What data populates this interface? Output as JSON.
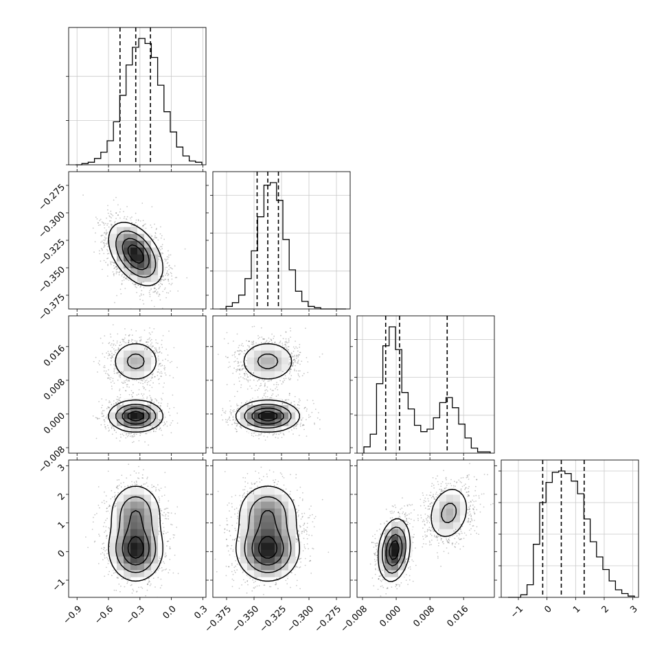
{
  "chart_data": {
    "type": "corner",
    "n_params": 4,
    "grid": true,
    "axes": [
      {
        "range": [
          -0.98,
          0.33
        ],
        "ticks": [
          {
            "v": -0.9,
            "label": "−0.9"
          },
          {
            "v": -0.6,
            "label": "−0.6"
          },
          {
            "v": -0.3,
            "label": "−0.3"
          },
          {
            "v": 0.0,
            "label": "0.0"
          },
          {
            "v": 0.3,
            "label": "0.3"
          }
        ],
        "quantiles": [
          -0.49,
          -0.34,
          -0.2
        ]
      },
      {
        "range": [
          -0.3875,
          -0.2625
        ],
        "ticks": [
          {
            "v": -0.375,
            "label": "−0.375"
          },
          {
            "v": -0.35,
            "label": "−0.350"
          },
          {
            "v": -0.325,
            "label": "−0.325"
          },
          {
            "v": -0.3,
            "label": "−0.300"
          },
          {
            "v": -0.275,
            "label": "−0.275"
          }
        ],
        "quantiles": [
          -0.3472,
          -0.3375,
          -0.3278
        ]
      },
      {
        "range": [
          -0.0093,
          0.0233
        ],
        "ticks": [
          {
            "v": -0.008,
            "label": "−0.008"
          },
          {
            "v": 0.0,
            "label": "0.000"
          },
          {
            "v": 0.008,
            "label": "0.008"
          },
          {
            "v": 0.016,
            "label": "0.016"
          }
        ],
        "quantiles": [
          -0.0025,
          0.0008,
          0.0121
        ]
      },
      {
        "range": [
          -1.6,
          3.2
        ],
        "ticks": [
          {
            "v": -1,
            "label": "−1"
          },
          {
            "v": 0,
            "label": "0"
          },
          {
            "v": 1,
            "label": "1"
          },
          {
            "v": 2,
            "label": "2"
          },
          {
            "v": 3,
            "label": "3"
          }
        ],
        "quantiles": [
          -0.15,
          0.5,
          1.3
        ]
      }
    ],
    "diag_yticks": [
      [
        0.0,
        0.35,
        0.7
      ],
      [
        0.0,
        0.3,
        0.6,
        0.9
      ],
      [
        0.0,
        0.3,
        0.6,
        0.9
      ],
      [
        0.0,
        0.25,
        0.5,
        0.75,
        1.0
      ]
    ],
    "histograms": [
      [
        0.0,
        0.01,
        0.02,
        0.05,
        0.1,
        0.19,
        0.34,
        0.55,
        0.79,
        0.93,
        1.0,
        0.96,
        0.85,
        0.63,
        0.42,
        0.26,
        0.14,
        0.07,
        0.03,
        0.02
      ],
      [
        0.0,
        0.02,
        0.05,
        0.11,
        0.24,
        0.46,
        0.73,
        0.98,
        1.0,
        0.86,
        0.55,
        0.31,
        0.14,
        0.06,
        0.02,
        0.01,
        0.0,
        0.0,
        0.0,
        0.0
      ],
      [
        0.05,
        0.15,
        0.55,
        0.85,
        1.0,
        0.82,
        0.48,
        0.35,
        0.22,
        0.17,
        0.19,
        0.28,
        0.4,
        0.44,
        0.36,
        0.23,
        0.12,
        0.04,
        0.01,
        0.01
      ],
      [
        0.0,
        0.0,
        0.02,
        0.1,
        0.42,
        0.75,
        0.91,
        0.99,
        1.0,
        0.98,
        0.92,
        0.82,
        0.62,
        0.44,
        0.32,
        0.22,
        0.13,
        0.06,
        0.03,
        0.01
      ]
    ],
    "components": [
      {
        "w": 0.62,
        "mean": [
          -0.34,
          -0.3375,
          -0.0005,
          0.05
        ],
        "sd": [
          0.13,
          0.0145,
          0.0019,
          0.55
        ]
      },
      {
        "w": 0.38,
        "mean": [
          -0.34,
          -0.3375,
          0.0125,
          1.35
        ],
        "sd": [
          0.13,
          0.0145,
          0.0028,
          0.55
        ]
      }
    ],
    "corr": [
      [
        1.0,
        -0.45,
        0.0,
        0.0
      ],
      [
        -0.45,
        1.0,
        0.0,
        0.0
      ],
      [
        0.0,
        0.0,
        1.0,
        0.2
      ],
      [
        0.0,
        0.0,
        0.2,
        1.0
      ]
    ]
  }
}
